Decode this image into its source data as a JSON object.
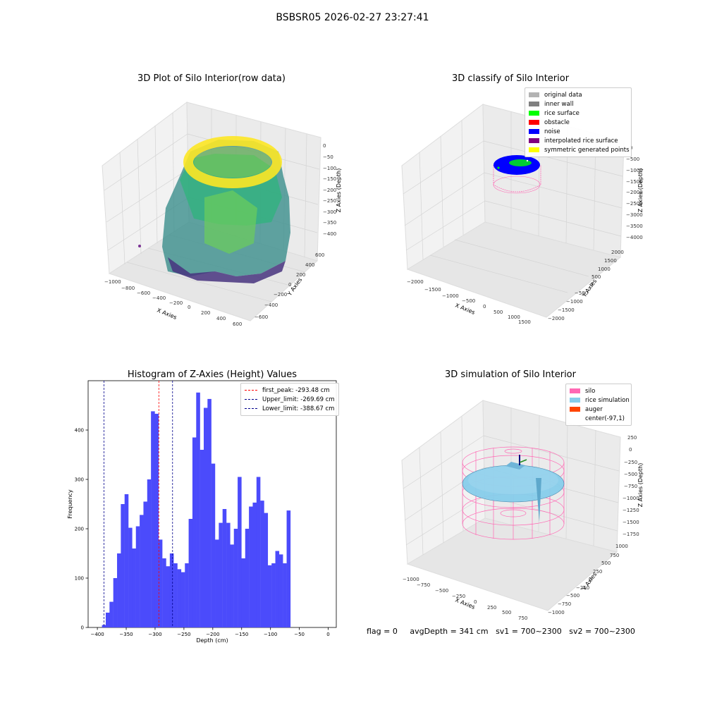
{
  "suptitle": "BSBSR05 2026-02-27 23:27:41",
  "panels": {
    "raw": {
      "title": "3D Plot of Silo Interior(row data)",
      "xlabel": "X Axies",
      "ylabel": "Y Axies",
      "zlabel": "Z Axies (Depth)",
      "xticks": [
        "−1000",
        "−800",
        "−600",
        "−400",
        "−200",
        "0",
        "200",
        "400",
        "600"
      ],
      "yticks": [
        "600",
        "400",
        "200",
        "0",
        "−200",
        "−400",
        "−600"
      ],
      "zticks": [
        "0",
        "−50",
        "−100",
        "−150",
        "−200",
        "−250",
        "−300",
        "−350",
        "−400"
      ]
    },
    "classify": {
      "title": "3D classify of Silo Interior",
      "xlabel": "X Axies",
      "ylabel": "Y Axies",
      "zlabel": "Z Axies (Depth)",
      "xticks": [
        "−2000",
        "−1500",
        "−1000",
        "−500",
        "0",
        "500",
        "1000",
        "1500"
      ],
      "yticks": [
        "2000",
        "1500",
        "1000",
        "500",
        "0",
        "−500",
        "−1000",
        "−1500",
        "−2000"
      ],
      "zticks": [
        "0",
        "−500",
        "−1000",
        "−1500",
        "−2000",
        "−2500",
        "−3000",
        "−3500",
        "−4000"
      ],
      "legend": [
        {
          "label": "original data",
          "color": "#b3b3b3"
        },
        {
          "label": "inner wall",
          "color": "#808080"
        },
        {
          "label": "rice surface",
          "color": "#00ff00"
        },
        {
          "label": "obstacle",
          "color": "#ff0000"
        },
        {
          "label": "noise",
          "color": "#0000ff"
        },
        {
          "label": "interpolated rice surface",
          "color": "#800080"
        },
        {
          "label": "symmetric generated points",
          "color": "#ffff00"
        }
      ]
    },
    "simulation": {
      "title": "3D simulation of Silo Interior",
      "xlabel": "X Axies",
      "ylabel": "Y Axies",
      "zlabel": "Z Axies (Depth)",
      "xticks": [
        "−1000",
        "−750",
        "−500",
        "−250",
        "0",
        "250",
        "500",
        "750"
      ],
      "yticks": [
        "1000",
        "750",
        "500",
        "250",
        "0",
        "−250",
        "−500",
        "−750",
        "−1000"
      ],
      "zticks": [
        "250",
        "0",
        "−250",
        "−500",
        "−750",
        "−1000",
        "−1250",
        "−1500",
        "−1750"
      ],
      "legend": [
        {
          "label": "silo",
          "color": "#ff69b4"
        },
        {
          "label": "rice simulation",
          "color": "#87ceeb"
        },
        {
          "label": "auger",
          "color": "#ff4500"
        },
        {
          "label": "center(-97,1)",
          "color": ""
        }
      ]
    }
  },
  "chart_data": {
    "type": "bar",
    "title": "Histogram of Z-Axies (Height) Values",
    "xlabel": "Depth (cm)",
    "ylabel": "Frequency",
    "xlim": [
      -416,
      14
    ],
    "ylim": [
      0,
      500
    ],
    "xticks": [
      -400,
      -350,
      -300,
      -250,
      -200,
      -150,
      -100,
      -50,
      0
    ],
    "yticks": [
      0,
      100,
      200,
      300,
      400
    ],
    "bin_start": -392,
    "bin_width": 6.53,
    "values": [
      5,
      30,
      52,
      100,
      150,
      250,
      270,
      202,
      160,
      205,
      228,
      255,
      300,
      438,
      433,
      178,
      140,
      124,
      150,
      130,
      118,
      112,
      130,
      220,
      385,
      476,
      360,
      445,
      463,
      332,
      178,
      212,
      240,
      212,
      168,
      200,
      305,
      140,
      200,
      245,
      253,
      305,
      257,
      232,
      126,
      130,
      155,
      148,
      130,
      237
    ],
    "color": "#4b4bfb",
    "vlines": [
      {
        "label": "first_peak: -293.48 cm",
        "x": -293.48,
        "color": "#ff0000"
      },
      {
        "label": "Upper_limit: -269.69 cm",
        "x": -269.69,
        "color": "#00008b"
      },
      {
        "label": "Lower_limit: -388.67 cm",
        "x": -388.67,
        "color": "#00008b"
      }
    ],
    "legend_position": "top-right"
  },
  "footer": {
    "flag": "flag = 0",
    "avg": "avgDepth = 341 cm",
    "sv1": "sv1 = 700~2300",
    "sv2": "sv2 = 700~2300"
  }
}
